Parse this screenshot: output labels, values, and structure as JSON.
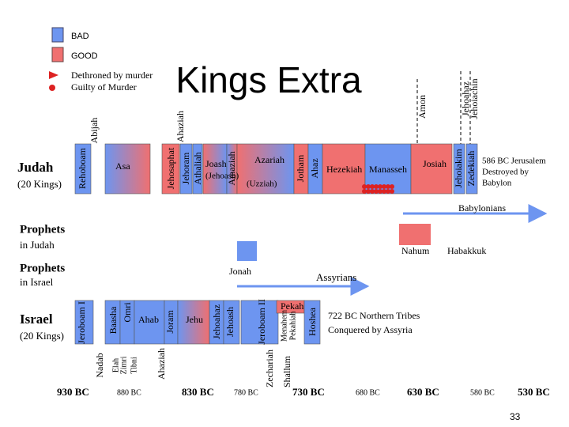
{
  "title": "Kings Extra",
  "legend": [
    "BAD",
    "GOOD",
    "Dethroned by murder",
    "Guilty of Murder"
  ],
  "judah": {
    "label": "Judah",
    "count": "(20 Kings)",
    "kings": [
      {
        "name": "Rehoboam"
      },
      {
        "name": "Abijah"
      },
      {
        "name": "Asa"
      },
      {
        "name": "Jehosaphat"
      },
      {
        "name": "Jehoram"
      },
      {
        "name": "Ahaziah"
      },
      {
        "name": "Athaliah"
      },
      {
        "name": "Joash",
        "alias": "(Jehoash)"
      },
      {
        "name": "Amaziah"
      },
      {
        "name": "Azariah",
        "alias": "(Uzziah)"
      },
      {
        "name": "Jotham"
      },
      {
        "name": "Ahaz"
      },
      {
        "name": "Hezekiah"
      },
      {
        "name": "Manasseh"
      },
      {
        "name": "Amon"
      },
      {
        "name": "Josiah"
      },
      {
        "name": "Jehoahaz"
      },
      {
        "name": "Jehoiakim"
      },
      {
        "name": "Jehoiachin"
      },
      {
        "name": "Zedekiah"
      }
    ],
    "end": [
      "586 BC Jerusalem",
      "Destroyed by",
      "Babylon"
    ]
  },
  "empires": [
    "Babylonians",
    "Assyrians"
  ],
  "prophets_judah": {
    "label": "Prophets",
    "sub": "in Judah",
    "names": [
      "Nahum",
      "Habakkuk"
    ]
  },
  "prophets_israel": {
    "label": "Prophets",
    "sub": "in Israel",
    "names": [
      "Jonah"
    ]
  },
  "israel": {
    "label": "Israel",
    "count": "(20 Kings)",
    "kings": [
      {
        "name": "Jeroboam I"
      },
      {
        "name": "Nadab"
      },
      {
        "name": "Baasha"
      },
      {
        "name": "Elah"
      },
      {
        "name": "Zimri"
      },
      {
        "name": "Tibni"
      },
      {
        "name": "Omri"
      },
      {
        "name": "Ahab"
      },
      {
        "name": "Ahaziah"
      },
      {
        "name": "Joram"
      },
      {
        "name": "Jehu"
      },
      {
        "name": "Jehoahaz"
      },
      {
        "name": "Jehoash"
      },
      {
        "name": "Jeroboam II"
      },
      {
        "name": "Zechariah"
      },
      {
        "name": "Shallum"
      },
      {
        "name": "Menahem"
      },
      {
        "name": "Pekahiah"
      },
      {
        "name": "Pekah"
      },
      {
        "name": "Hoshea"
      }
    ],
    "end": [
      "722 BC Northern Tribes",
      "Conquered by Assyria"
    ]
  },
  "dates": [
    "930 BC",
    "880 BC",
    "830 BC",
    "780 BC",
    "730 BC",
    "680 BC",
    "630 BC",
    "580 BC",
    "530 BC"
  ],
  "page_number": "33"
}
